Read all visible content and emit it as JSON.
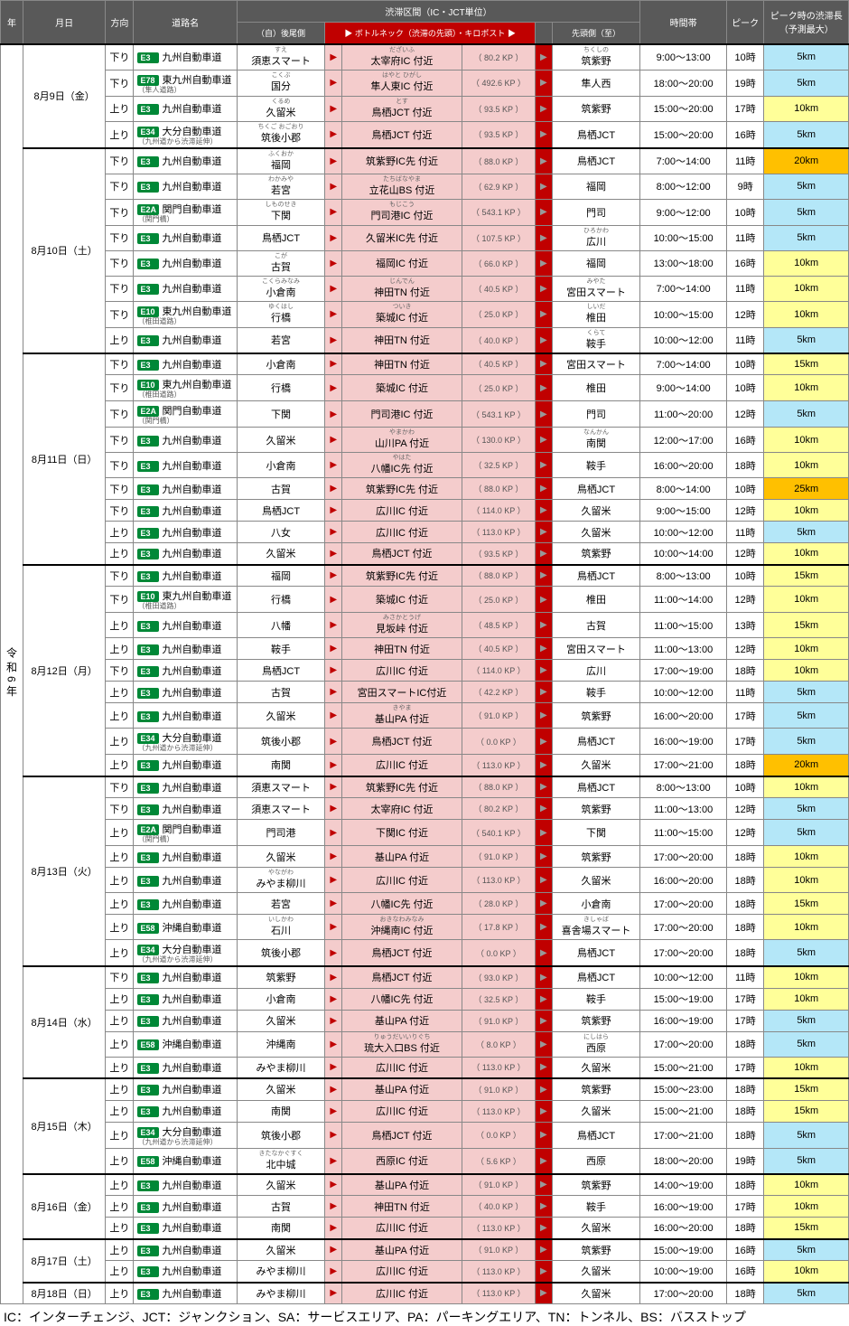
{
  "header": {
    "year": "年",
    "date": "月日",
    "dir": "方向",
    "road": "道路名",
    "section": "渋滞区間（IC・JCT単位）",
    "tail": "（自）後尾側",
    "neck_hdr": "ボトルネック（渋滞の先頭）・キロポスト",
    "head": "先頭側（至）",
    "time": "時間帯",
    "peak": "ピーク",
    "len": "ピーク時の渋滞長（予測最大）"
  },
  "year_label": "令和6年",
  "footnote": "IC：インターチェンジ、JCT：ジャンクション、SA：サービスエリア、PA：パーキングエリア、TN：トンネル、BS：バスストップ",
  "dates": [
    {
      "label": "8月9日（金）",
      "rows": [
        {
          "dir": "下り",
          "rn": "E3",
          "road": "九州自動車道",
          "tail": "須恵スマート",
          "tr": "すえ",
          "neck": "太宰府IC 付近",
          "nr": "だざいふ",
          "kp": "80.2",
          "head": "筑紫野",
          "hr": "ちくしの",
          "time": "9:00～13:00",
          "peak": "10時",
          "len": "5km",
          "lc": "b"
        },
        {
          "dir": "下り",
          "rn": "E78",
          "road": "東九州自動車道",
          "rs": "（隼人道路）",
          "tail": "国分",
          "tr": "こくぶ",
          "neck": "隼人東IC 付近",
          "nr": "はやと ひがし",
          "kp": "492.6",
          "head": "隼人西",
          "time": "18:00～20:00",
          "peak": "19時",
          "len": "5km",
          "lc": "b"
        },
        {
          "dir": "上り",
          "rn": "E3",
          "road": "九州自動車道",
          "tail": "久留米",
          "tr": "くるめ",
          "neck": "鳥栖JCT 付近",
          "nr": "とす",
          "kp": "93.5",
          "head": "筑紫野",
          "time": "15:00～20:00",
          "peak": "17時",
          "len": "10km",
          "lc": "y"
        },
        {
          "dir": "上り",
          "rn": "E34",
          "road": "大分自動車道",
          "rs": "（九州道から渋滞延伸）",
          "tail": "筑後小郡",
          "tr": "ちくご おごおり",
          "neck": "鳥栖JCT 付近",
          "kp": "93.5",
          "head": "鳥栖JCT",
          "time": "15:00～20:00",
          "peak": "16時",
          "len": "5km",
          "lc": "b"
        }
      ]
    },
    {
      "label": "8月10日（土）",
      "rows": [
        {
          "dir": "下り",
          "rn": "E3",
          "road": "九州自動車道",
          "tail": "福岡",
          "tr": "ふくおか",
          "neck": "筑紫野IC先 付近",
          "kp": "88.0",
          "head": "鳥栖JCT",
          "time": "7:00～14:00",
          "peak": "11時",
          "len": "20km",
          "lc": "o"
        },
        {
          "dir": "下り",
          "rn": "E3",
          "road": "九州自動車道",
          "tail": "若宮",
          "tr": "わかみや",
          "neck": "立花山BS 付近",
          "nr": "たちばなやま",
          "kp": "62.9",
          "head": "福岡",
          "time": "8:00～12:00",
          "peak": "9時",
          "len": "5km",
          "lc": "b"
        },
        {
          "dir": "下り",
          "rn": "E2A",
          "road": "関門自動車道",
          "rs": "（関門橋）",
          "tail": "下関",
          "tr": "しものせき",
          "neck": "門司港IC 付近",
          "nr": "もじこう",
          "kp": "543.1",
          "head": "門司",
          "time": "9:00～12:00",
          "peak": "10時",
          "len": "5km",
          "lc": "b"
        },
        {
          "dir": "下り",
          "rn": "E3",
          "road": "九州自動車道",
          "tail": "鳥栖JCT",
          "neck": "久留米IC先 付近",
          "kp": "107.5",
          "head": "広川",
          "hr": "ひろかわ",
          "time": "10:00～15:00",
          "peak": "11時",
          "len": "5km",
          "lc": "b"
        },
        {
          "dir": "下り",
          "rn": "E3",
          "road": "九州自動車道",
          "tail": "古賀",
          "tr": "こが",
          "neck": "福岡IC 付近",
          "kp": "66.0",
          "head": "福岡",
          "time": "13:00～18:00",
          "peak": "16時",
          "len": "10km",
          "lc": "y"
        },
        {
          "dir": "下り",
          "rn": "E3",
          "road": "九州自動車道",
          "tail": "小倉南",
          "tr": "こくらみなみ",
          "neck": "神田TN 付近",
          "nr": "じんでん",
          "kp": "40.5",
          "head": "宮田スマート",
          "hr": "みやた",
          "time": "7:00～14:00",
          "peak": "11時",
          "len": "10km",
          "lc": "y"
        },
        {
          "dir": "下り",
          "rn": "E10",
          "road": "東九州自動車道",
          "rs": "（椎田道路）",
          "tail": "行橋",
          "tr": "ゆくはし",
          "neck": "築城IC 付近",
          "nr": "ついき",
          "kp": "25.0",
          "head": "椎田",
          "hr": "しいだ",
          "time": "10:00～15:00",
          "peak": "12時",
          "len": "10km",
          "lc": "y"
        },
        {
          "dir": "上り",
          "rn": "E3",
          "road": "九州自動車道",
          "tail": "若宮",
          "neck": "神田TN 付近",
          "kp": "40.0",
          "head": "鞍手",
          "hr": "くらて",
          "time": "10:00～12:00",
          "peak": "11時",
          "len": "5km",
          "lc": "b"
        }
      ]
    },
    {
      "label": "8月11日（日）",
      "rows": [
        {
          "dir": "下り",
          "rn": "E3",
          "road": "九州自動車道",
          "tail": "小倉南",
          "neck": "神田TN 付近",
          "kp": "40.5",
          "head": "宮田スマート",
          "time": "7:00～14:00",
          "peak": "10時",
          "len": "15km",
          "lc": "y"
        },
        {
          "dir": "下り",
          "rn": "E10",
          "road": "東九州自動車道",
          "rs": "（椎田道路）",
          "tail": "行橋",
          "neck": "築城IC 付近",
          "kp": "25.0",
          "head": "椎田",
          "time": "9:00～14:00",
          "peak": "10時",
          "len": "10km",
          "lc": "y"
        },
        {
          "dir": "下り",
          "rn": "E2A",
          "road": "関門自動車道",
          "rs": "（関門橋）",
          "tail": "下関",
          "neck": "門司港IC 付近",
          "kp": "543.1",
          "head": "門司",
          "time": "11:00～20:00",
          "peak": "12時",
          "len": "5km",
          "lc": "b"
        },
        {
          "dir": "下り",
          "rn": "E3",
          "road": "九州自動車道",
          "tail": "久留米",
          "neck": "山川PA 付近",
          "nr": "やまかわ",
          "kp": "130.0",
          "head": "南関",
          "hr": "なんかん",
          "time": "12:00～17:00",
          "peak": "16時",
          "len": "10km",
          "lc": "y"
        },
        {
          "dir": "下り",
          "rn": "E3",
          "road": "九州自動車道",
          "tail": "小倉南",
          "neck": "八幡IC先 付近",
          "nr": "やはた",
          "kp": "32.5",
          "head": "鞍手",
          "time": "16:00～20:00",
          "peak": "18時",
          "len": "10km",
          "lc": "y"
        },
        {
          "dir": "下り",
          "rn": "E3",
          "road": "九州自動車道",
          "tail": "古賀",
          "neck": "筑紫野IC先 付近",
          "kp": "88.0",
          "head": "鳥栖JCT",
          "time": "8:00～14:00",
          "peak": "10時",
          "len": "25km",
          "lc": "o"
        },
        {
          "dir": "下り",
          "rn": "E3",
          "road": "九州自動車道",
          "tail": "鳥栖JCT",
          "neck": "広川IC 付近",
          "kp": "114.0",
          "head": "久留米",
          "time": "9:00～15:00",
          "peak": "12時",
          "len": "10km",
          "lc": "y"
        },
        {
          "dir": "上り",
          "rn": "E3",
          "road": "九州自動車道",
          "tail": "八女",
          "neck": "広川IC 付近",
          "kp": "113.0",
          "head": "久留米",
          "time": "10:00～12:00",
          "peak": "11時",
          "len": "5km",
          "lc": "b"
        },
        {
          "dir": "上り",
          "rn": "E3",
          "road": "九州自動車道",
          "tail": "久留米",
          "neck": "鳥栖JCT 付近",
          "kp": "93.5",
          "head": "筑紫野",
          "time": "10:00～14:00",
          "peak": "12時",
          "len": "10km",
          "lc": "y"
        }
      ]
    },
    {
      "label": "8月12日（月）",
      "rows": [
        {
          "dir": "下り",
          "rn": "E3",
          "road": "九州自動車道",
          "tail": "福岡",
          "neck": "筑紫野IC先 付近",
          "kp": "88.0",
          "head": "鳥栖JCT",
          "time": "8:00～13:00",
          "peak": "10時",
          "len": "15km",
          "lc": "y"
        },
        {
          "dir": "下り",
          "rn": "E10",
          "road": "東九州自動車道",
          "rs": "（椎田道路）",
          "tail": "行橋",
          "neck": "築城IC 付近",
          "kp": "25.0",
          "head": "椎田",
          "time": "11:00～14:00",
          "peak": "12時",
          "len": "10km",
          "lc": "y"
        },
        {
          "dir": "上り",
          "rn": "E3",
          "road": "九州自動車道",
          "tail": "八幡",
          "neck": "見坂峠 付近",
          "nr": "みさかとうげ",
          "kp": "48.5",
          "head": "古賀",
          "time": "11:00～15:00",
          "peak": "13時",
          "len": "15km",
          "lc": "y"
        },
        {
          "dir": "上り",
          "rn": "E3",
          "road": "九州自動車道",
          "tail": "鞍手",
          "neck": "神田TN 付近",
          "kp": "40.5",
          "head": "宮田スマート",
          "time": "11:00～13:00",
          "peak": "12時",
          "len": "10km",
          "lc": "y"
        },
        {
          "dir": "下り",
          "rn": "E3",
          "road": "九州自動車道",
          "tail": "鳥栖JCT",
          "neck": "広川IC 付近",
          "kp": "114.0",
          "head": "広川",
          "time": "17:00～19:00",
          "peak": "18時",
          "len": "10km",
          "lc": "y"
        },
        {
          "dir": "上り",
          "rn": "E3",
          "road": "九州自動車道",
          "tail": "古賀",
          "neck": "宮田スマートIC付近",
          "kp": "42.2",
          "head": "鞍手",
          "time": "10:00～12:00",
          "peak": "11時",
          "len": "5km",
          "lc": "b"
        },
        {
          "dir": "上り",
          "rn": "E3",
          "road": "九州自動車道",
          "tail": "久留米",
          "neck": "基山PA 付近",
          "nr": "きやま",
          "kp": "91.0",
          "head": "筑紫野",
          "time": "16:00～20:00",
          "peak": "17時",
          "len": "5km",
          "lc": "b"
        },
        {
          "dir": "上り",
          "rn": "E34",
          "road": "大分自動車道",
          "rs": "（九州道から渋滞延伸）",
          "tail": "筑後小郡",
          "neck": "鳥栖JCT 付近",
          "kp": "0.0",
          "head": "鳥栖JCT",
          "time": "16:00～19:00",
          "peak": "17時",
          "len": "5km",
          "lc": "b"
        },
        {
          "dir": "上り",
          "rn": "E3",
          "road": "九州自動車道",
          "tail": "南関",
          "neck": "広川IC 付近",
          "kp": "113.0",
          "head": "久留米",
          "time": "17:00～21:00",
          "peak": "18時",
          "len": "20km",
          "lc": "o"
        }
      ]
    },
    {
      "label": "8月13日（火）",
      "rows": [
        {
          "dir": "下り",
          "rn": "E3",
          "road": "九州自動車道",
          "tail": "須恵スマート",
          "neck": "筑紫野IC先 付近",
          "kp": "88.0",
          "head": "鳥栖JCT",
          "time": "8:00～13:00",
          "peak": "10時",
          "len": "10km",
          "lc": "y"
        },
        {
          "dir": "下り",
          "rn": "E3",
          "road": "九州自動車道",
          "tail": "須恵スマート",
          "neck": "太宰府IC 付近",
          "kp": "80.2",
          "head": "筑紫野",
          "time": "11:00～13:00",
          "peak": "12時",
          "len": "5km",
          "lc": "b"
        },
        {
          "dir": "上り",
          "rn": "E2A",
          "road": "関門自動車道",
          "rs": "（関門橋）",
          "tail": "門司港",
          "neck": "下関IC 付近",
          "kp": "540.1",
          "head": "下関",
          "time": "11:00～15:00",
          "peak": "12時",
          "len": "5km",
          "lc": "b"
        },
        {
          "dir": "上り",
          "rn": "E3",
          "road": "九州自動車道",
          "tail": "久留米",
          "neck": "基山PA 付近",
          "kp": "91.0",
          "head": "筑紫野",
          "time": "17:00～20:00",
          "peak": "18時",
          "len": "10km",
          "lc": "y"
        },
        {
          "dir": "上り",
          "rn": "E3",
          "road": "九州自動車道",
          "tail": "みやま柳川",
          "tr": "やながわ",
          "neck": "広川IC 付近",
          "kp": "113.0",
          "head": "久留米",
          "time": "16:00～20:00",
          "peak": "18時",
          "len": "10km",
          "lc": "y"
        },
        {
          "dir": "上り",
          "rn": "E3",
          "road": "九州自動車道",
          "tail": "若宮",
          "neck": "八幡IC先 付近",
          "kp": "28.0",
          "head": "小倉南",
          "time": "17:00～20:00",
          "peak": "18時",
          "len": "15km",
          "lc": "y"
        },
        {
          "dir": "上り",
          "rn": "E58",
          "road": "沖縄自動車道",
          "tail": "石川",
          "tr": "いしかわ",
          "neck": "沖縄南IC 付近",
          "nr": "おきなわみなみ",
          "kp": "17.8",
          "head": "喜舎場スマート",
          "hr": "きしゃば",
          "time": "17:00～20:00",
          "peak": "18時",
          "len": "10km",
          "lc": "y"
        },
        {
          "dir": "上り",
          "rn": "E34",
          "road": "大分自動車道",
          "rs": "（九州道から渋滞延伸）",
          "tail": "筑後小郡",
          "neck": "鳥栖JCT 付近",
          "kp": "0.0",
          "head": "鳥栖JCT",
          "time": "17:00～20:00",
          "peak": "18時",
          "len": "5km",
          "lc": "b"
        }
      ]
    },
    {
      "label": "8月14日（水）",
      "rows": [
        {
          "dir": "下り",
          "rn": "E3",
          "road": "九州自動車道",
          "tail": "筑紫野",
          "neck": "鳥栖JCT 付近",
          "kp": "93.0",
          "head": "鳥栖JCT",
          "time": "10:00～12:00",
          "peak": "11時",
          "len": "10km",
          "lc": "y"
        },
        {
          "dir": "上り",
          "rn": "E3",
          "road": "九州自動車道",
          "tail": "小倉南",
          "neck": "八幡IC先 付近",
          "kp": "32.5",
          "head": "鞍手",
          "time": "15:00～19:00",
          "peak": "17時",
          "len": "10km",
          "lc": "y"
        },
        {
          "dir": "上り",
          "rn": "E3",
          "road": "九州自動車道",
          "tail": "久留米",
          "neck": "基山PA 付近",
          "kp": "91.0",
          "head": "筑紫野",
          "time": "16:00～19:00",
          "peak": "17時",
          "len": "5km",
          "lc": "b"
        },
        {
          "dir": "上り",
          "rn": "E58",
          "road": "沖縄自動車道",
          "tail": "沖縄南",
          "neck": "琉大入口BS 付近",
          "nr": "りゅうだいいりぐち",
          "kp": "8.0",
          "head": "西原",
          "hr": "にしはら",
          "time": "17:00～20:00",
          "peak": "18時",
          "len": "5km",
          "lc": "b"
        },
        {
          "dir": "上り",
          "rn": "E3",
          "road": "九州自動車道",
          "tail": "みやま柳川",
          "neck": "広川IC 付近",
          "kp": "113.0",
          "head": "久留米",
          "time": "15:00～21:00",
          "peak": "17時",
          "len": "10km",
          "lc": "y"
        }
      ]
    },
    {
      "label": "8月15日（木）",
      "rows": [
        {
          "dir": "上り",
          "rn": "E3",
          "road": "九州自動車道",
          "tail": "久留米",
          "neck": "基山PA 付近",
          "kp": "91.0",
          "head": "筑紫野",
          "time": "15:00～23:00",
          "peak": "18時",
          "len": "15km",
          "lc": "y"
        },
        {
          "dir": "上り",
          "rn": "E3",
          "road": "九州自動車道",
          "tail": "南関",
          "neck": "広川IC 付近",
          "kp": "113.0",
          "head": "久留米",
          "time": "15:00～21:00",
          "peak": "18時",
          "len": "15km",
          "lc": "y"
        },
        {
          "dir": "上り",
          "rn": "E34",
          "road": "大分自動車道",
          "rs": "（九州道から渋滞延伸）",
          "tail": "筑後小郡",
          "neck": "鳥栖JCT 付近",
          "kp": "0.0",
          "head": "鳥栖JCT",
          "time": "17:00～21:00",
          "peak": "18時",
          "len": "5km",
          "lc": "b"
        },
        {
          "dir": "上り",
          "rn": "E58",
          "road": "沖縄自動車道",
          "tail": "北中城",
          "tr": "きたなかぐすく",
          "neck": "西原IC 付近",
          "kp": "5.6",
          "head": "西原",
          "time": "18:00～20:00",
          "peak": "19時",
          "len": "5km",
          "lc": "b"
        }
      ]
    },
    {
      "label": "8月16日（金）",
      "rows": [
        {
          "dir": "上り",
          "rn": "E3",
          "road": "九州自動車道",
          "tail": "久留米",
          "neck": "基山PA 付近",
          "kp": "91.0",
          "head": "筑紫野",
          "time": "14:00～19:00",
          "peak": "18時",
          "len": "10km",
          "lc": "y"
        },
        {
          "dir": "上り",
          "rn": "E3",
          "road": "九州自動車道",
          "tail": "古賀",
          "neck": "神田TN 付近",
          "kp": "40.0",
          "head": "鞍手",
          "time": "16:00～19:00",
          "peak": "17時",
          "len": "10km",
          "lc": "y"
        },
        {
          "dir": "上り",
          "rn": "E3",
          "road": "九州自動車道",
          "tail": "南関",
          "neck": "広川IC 付近",
          "kp": "113.0",
          "head": "久留米",
          "time": "16:00～20:00",
          "peak": "18時",
          "len": "15km",
          "lc": "y"
        }
      ]
    },
    {
      "label": "8月17日（土）",
      "rows": [
        {
          "dir": "上り",
          "rn": "E3",
          "road": "九州自動車道",
          "tail": "久留米",
          "neck": "基山PA 付近",
          "kp": "91.0",
          "head": "筑紫野",
          "time": "15:00～19:00",
          "peak": "16時",
          "len": "5km",
          "lc": "b"
        },
        {
          "dir": "上り",
          "rn": "E3",
          "road": "九州自動車道",
          "tail": "みやま柳川",
          "neck": "広川IC 付近",
          "kp": "113.0",
          "head": "久留米",
          "time": "10:00～19:00",
          "peak": "16時",
          "len": "10km",
          "lc": "y"
        }
      ]
    },
    {
      "label": "8月18日（日）",
      "rows": [
        {
          "dir": "上り",
          "rn": "E3",
          "road": "九州自動車道",
          "tail": "みやま柳川",
          "neck": "広川IC 付近",
          "kp": "113.0",
          "head": "久留米",
          "time": "17:00～20:00",
          "peak": "18時",
          "len": "5km",
          "lc": "b"
        }
      ]
    }
  ]
}
